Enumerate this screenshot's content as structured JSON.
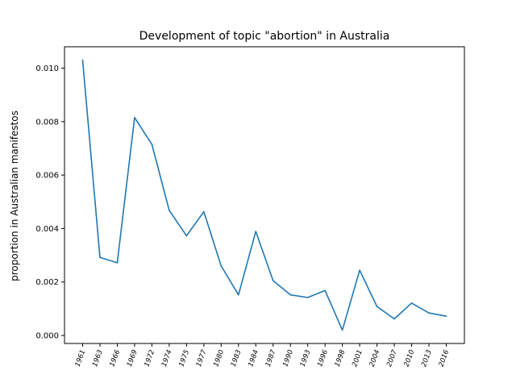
{
  "chart_data": {
    "type": "line",
    "title": "Development of topic \"abortion\" in Australia",
    "xlabel": "",
    "ylabel": "proportion in Australian manifestos",
    "ylim": [
      -0.0003,
      0.0108
    ],
    "yticks": [
      0.0,
      0.002,
      0.004,
      0.006,
      0.008,
      0.01
    ],
    "ytick_labels": [
      "0.000",
      "0.002",
      "0.004",
      "0.006",
      "0.008",
      "0.010"
    ],
    "grid": false,
    "line_color": "#1f77b4",
    "categories": [
      "1961",
      "1963",
      "1966",
      "1969",
      "1972",
      "1974",
      "1975",
      "1977",
      "1980",
      "1983",
      "1984",
      "1987",
      "1990",
      "1993",
      "1996",
      "1998",
      "2001",
      "2004",
      "2007",
      "2010",
      "2013",
      "2016"
    ],
    "series": [
      {
        "values": [
          0.0103,
          0.00292,
          0.00272,
          0.00815,
          0.00715,
          0.00468,
          0.00373,
          0.00463,
          0.0026,
          0.00152,
          0.00389,
          0.00205,
          0.00152,
          0.00142,
          0.00168,
          0.0002,
          0.00244,
          0.00108,
          0.00062,
          0.00121,
          0.00084,
          0.00072
        ]
      }
    ]
  }
}
